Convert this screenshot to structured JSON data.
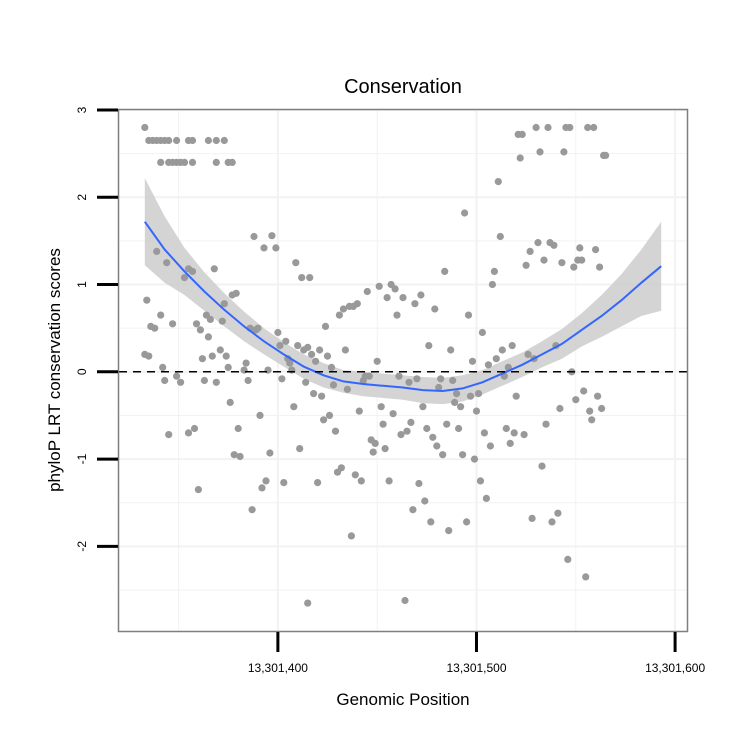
{
  "chart_data": {
    "type": "scatter",
    "title": "Conservation",
    "xlabel": "Genomic Position",
    "ylabel": "phyloP LRT conservation scores",
    "xlim": [
      13301320,
      13301606
    ],
    "ylim": [
      -2.97,
      3.0
    ],
    "xticks": [
      13301400,
      13301500,
      13301600
    ],
    "xtick_labels": [
      "13,301,400",
      "13,301,500",
      "13,301,600"
    ],
    "yticks": [
      -2,
      -1,
      0,
      1,
      2,
      3
    ],
    "ytick_labels": [
      "-2",
      "-1",
      "0",
      "1",
      "2",
      "3"
    ],
    "grid": true,
    "reference_line": {
      "y": 0,
      "style": "dashed"
    },
    "colors": {
      "points": "#999999",
      "smooth": "#3366ff",
      "band": "#cccccc",
      "frame": "#7f7f7f",
      "grid": "#f2f2f2"
    },
    "smooth": {
      "x": [
        13301333,
        13301343,
        13301353,
        13301363,
        13301373,
        13301383,
        13301393,
        13301403,
        13301413,
        13301423,
        13301433,
        13301443,
        13301453,
        13301463,
        13301473,
        13301483,
        13301493,
        13301503,
        13301513,
        13301523,
        13301533,
        13301543,
        13301553,
        13301563,
        13301573,
        13301583,
        13301593
      ],
      "y": [
        1.72,
        1.4,
        1.15,
        0.92,
        0.71,
        0.52,
        0.35,
        0.2,
        0.06,
        -0.04,
        -0.11,
        -0.14,
        -0.16,
        -0.18,
        -0.21,
        -0.22,
        -0.19,
        -0.12,
        -0.02,
        0.08,
        0.2,
        0.32,
        0.48,
        0.64,
        0.82,
        1.02,
        1.21
      ],
      "upper": [
        2.22,
        1.78,
        1.42,
        1.14,
        0.9,
        0.69,
        0.5,
        0.34,
        0.2,
        0.1,
        0.02,
        0.0,
        -0.02,
        -0.04,
        -0.06,
        -0.07,
        -0.04,
        0.02,
        0.12,
        0.22,
        0.35,
        0.49,
        0.67,
        0.88,
        1.12,
        1.4,
        1.72
      ],
      "lower": [
        1.22,
        1.02,
        0.88,
        0.7,
        0.52,
        0.35,
        0.2,
        0.06,
        -0.08,
        -0.18,
        -0.24,
        -0.28,
        -0.3,
        -0.32,
        -0.36,
        -0.37,
        -0.34,
        -0.26,
        -0.16,
        -0.06,
        0.05,
        0.15,
        0.29,
        0.4,
        0.52,
        0.64,
        0.7
      ]
    },
    "points": [
      {
        "x": 13301333,
        "y": 2.8
      },
      {
        "x": 13301333,
        "y": 0.2
      },
      {
        "x": 13301335,
        "y": 2.65
      },
      {
        "x": 13301337,
        "y": 2.65
      },
      {
        "x": 13301339,
        "y": 2.65
      },
      {
        "x": 13301341,
        "y": 2.65
      },
      {
        "x": 13301343,
        "y": 2.65
      },
      {
        "x": 13301341,
        "y": 2.4
      },
      {
        "x": 13301345,
        "y": 2.4
      },
      {
        "x": 13301347,
        "y": 2.4
      },
      {
        "x": 13301349,
        "y": 2.4
      },
      {
        "x": 13301351,
        "y": 2.4
      },
      {
        "x": 13301353,
        "y": 2.4
      },
      {
        "x": 13301345,
        "y": 2.65
      },
      {
        "x": 13301349,
        "y": 2.65
      },
      {
        "x": 13301355,
        "y": 2.65
      },
      {
        "x": 13301357,
        "y": 2.65
      },
      {
        "x": 13301365,
        "y": 2.65
      },
      {
        "x": 13301369,
        "y": 2.65
      },
      {
        "x": 13301373,
        "y": 2.65
      },
      {
        "x": 13301357,
        "y": 2.4
      },
      {
        "x": 13301369,
        "y": 2.4
      },
      {
        "x": 13301375,
        "y": 2.4
      },
      {
        "x": 13301377,
        "y": 2.4
      },
      {
        "x": 13301334,
        "y": 0.82
      },
      {
        "x": 13301335,
        "y": 0.18
      },
      {
        "x": 13301336,
        "y": 0.52
      },
      {
        "x": 13301338,
        "y": 0.5
      },
      {
        "x": 13301339,
        "y": 1.38
      },
      {
        "x": 13301341,
        "y": 0.65
      },
      {
        "x": 13301342,
        "y": 0.05
      },
      {
        "x": 13301343,
        "y": -0.1
      },
      {
        "x": 13301344,
        "y": 1.25
      },
      {
        "x": 13301345,
        "y": -0.72
      },
      {
        "x": 13301347,
        "y": 0.55
      },
      {
        "x": 13301349,
        "y": -0.05
      },
      {
        "x": 13301351,
        "y": -0.12
      },
      {
        "x": 13301353,
        "y": 1.08
      },
      {
        "x": 13301355,
        "y": 1.18
      },
      {
        "x": 13301355,
        "y": -0.7
      },
      {
        "x": 13301357,
        "y": 1.15
      },
      {
        "x": 13301358,
        "y": -0.65
      },
      {
        "x": 13301359,
        "y": 0.55
      },
      {
        "x": 13301360,
        "y": -1.35
      },
      {
        "x": 13301361,
        "y": 0.48
      },
      {
        "x": 13301362,
        "y": 0.15
      },
      {
        "x": 13301363,
        "y": -0.1
      },
      {
        "x": 13301364,
        "y": 0.65
      },
      {
        "x": 13301365,
        "y": 0.4
      },
      {
        "x": 13301366,
        "y": 0.6
      },
      {
        "x": 13301367,
        "y": 0.18
      },
      {
        "x": 13301368,
        "y": 1.18
      },
      {
        "x": 13301369,
        "y": -0.12
      },
      {
        "x": 13301371,
        "y": 0.25
      },
      {
        "x": 13301372,
        "y": 0.58
      },
      {
        "x": 13301373,
        "y": 0.78
      },
      {
        "x": 13301374,
        "y": 0.18
      },
      {
        "x": 13301375,
        "y": 0.05
      },
      {
        "x": 13301376,
        "y": -0.35
      },
      {
        "x": 13301377,
        "y": 0.88
      },
      {
        "x": 13301378,
        "y": -0.95
      },
      {
        "x": 13301379,
        "y": 0.9
      },
      {
        "x": 13301380,
        "y": -0.65
      },
      {
        "x": 13301381,
        "y": -0.97
      },
      {
        "x": 13301383,
        "y": 0.02
      },
      {
        "x": 13301384,
        "y": 0.1
      },
      {
        "x": 13301385,
        "y": -0.1
      },
      {
        "x": 13301386,
        "y": 0.5
      },
      {
        "x": 13301387,
        "y": -1.58
      },
      {
        "x": 13301388,
        "y": 1.55
      },
      {
        "x": 13301389,
        "y": 0.48
      },
      {
        "x": 13301390,
        "y": 0.5
      },
      {
        "x": 13301391,
        "y": -0.5
      },
      {
        "x": 13301392,
        "y": -1.33
      },
      {
        "x": 13301393,
        "y": 1.42
      },
      {
        "x": 13301394,
        "y": -1.25
      },
      {
        "x": 13301395,
        "y": 0.02
      },
      {
        "x": 13301396,
        "y": -0.93
      },
      {
        "x": 13301397,
        "y": 1.56
      },
      {
        "x": 13301399,
        "y": 1.42
      },
      {
        "x": 13301400,
        "y": 0.45
      },
      {
        "x": 13301401,
        "y": 0.3
      },
      {
        "x": 13301402,
        "y": -0.08
      },
      {
        "x": 13301403,
        "y": -1.27
      },
      {
        "x": 13301404,
        "y": 0.35
      },
      {
        "x": 13301405,
        "y": 0.15
      },
      {
        "x": 13301406,
        "y": 0.1
      },
      {
        "x": 13301407,
        "y": 0.02
      },
      {
        "x": 13301408,
        "y": -0.4
      },
      {
        "x": 13301409,
        "y": 1.25
      },
      {
        "x": 13301410,
        "y": 0.3
      },
      {
        "x": 13301411,
        "y": -0.88
      },
      {
        "x": 13301412,
        "y": 1.08
      },
      {
        "x": 13301413,
        "y": 0.25
      },
      {
        "x": 13301414,
        "y": -0.12
      },
      {
        "x": 13301415,
        "y": -2.65
      },
      {
        "x": 13301415,
        "y": 0.28
      },
      {
        "x": 13301416,
        "y": 1.08
      },
      {
        "x": 13301417,
        "y": 0.2
      },
      {
        "x": 13301418,
        "y": -0.25
      },
      {
        "x": 13301419,
        "y": 0.12
      },
      {
        "x": 13301420,
        "y": -1.27
      },
      {
        "x": 13301421,
        "y": 0.25
      },
      {
        "x": 13301422,
        "y": -0.28
      },
      {
        "x": 13301423,
        "y": -0.55
      },
      {
        "x": 13301424,
        "y": 0.52
      },
      {
        "x": 13301425,
        "y": 0.18
      },
      {
        "x": 13301426,
        "y": -0.5
      },
      {
        "x": 13301427,
        "y": 0.05
      },
      {
        "x": 13301428,
        "y": -0.15
      },
      {
        "x": 13301429,
        "y": -0.68
      },
      {
        "x": 13301430,
        "y": -1.15
      },
      {
        "x": 13301431,
        "y": 0.65
      },
      {
        "x": 13301432,
        "y": -1.1
      },
      {
        "x": 13301433,
        "y": 0.72
      },
      {
        "x": 13301434,
        "y": 0.25
      },
      {
        "x": 13301435,
        "y": -0.2
      },
      {
        "x": 13301436,
        "y": 0.75
      },
      {
        "x": 13301437,
        "y": -1.88
      },
      {
        "x": 13301438,
        "y": 0.75
      },
      {
        "x": 13301439,
        "y": -1.18
      },
      {
        "x": 13301440,
        "y": 0.78
      },
      {
        "x": 13301441,
        "y": -0.45
      },
      {
        "x": 13301442,
        "y": -1.25
      },
      {
        "x": 13301443,
        "y": -0.1
      },
      {
        "x": 13301444,
        "y": -0.05
      },
      {
        "x": 13301445,
        "y": 0.92
      },
      {
        "x": 13301446,
        "y": -0.05
      },
      {
        "x": 13301447,
        "y": -0.78
      },
      {
        "x": 13301448,
        "y": -0.92
      },
      {
        "x": 13301449,
        "y": -0.82
      },
      {
        "x": 13301450,
        "y": 0.12
      },
      {
        "x": 13301451,
        "y": 0.98
      },
      {
        "x": 13301452,
        "y": -0.4
      },
      {
        "x": 13301453,
        "y": -0.6
      },
      {
        "x": 13301454,
        "y": -0.88
      },
      {
        "x": 13301455,
        "y": 0.85
      },
      {
        "x": 13301456,
        "y": -1.25
      },
      {
        "x": 13301457,
        "y": 1.0
      },
      {
        "x": 13301458,
        "y": -0.48
      },
      {
        "x": 13301459,
        "y": 0.95
      },
      {
        "x": 13301460,
        "y": 0.65
      },
      {
        "x": 13301461,
        "y": -0.05
      },
      {
        "x": 13301462,
        "y": -0.72
      },
      {
        "x": 13301463,
        "y": 0.85
      },
      {
        "x": 13301464,
        "y": -2.62
      },
      {
        "x": 13301465,
        "y": -0.68
      },
      {
        "x": 13301466,
        "y": -0.12
      },
      {
        "x": 13301467,
        "y": -0.58
      },
      {
        "x": 13301468,
        "y": -1.58
      },
      {
        "x": 13301469,
        "y": 0.78
      },
      {
        "x": 13301470,
        "y": -0.08
      },
      {
        "x": 13301471,
        "y": -1.28
      },
      {
        "x": 13301472,
        "y": 0.88
      },
      {
        "x": 13301473,
        "y": -0.4
      },
      {
        "x": 13301474,
        "y": -1.48
      },
      {
        "x": 13301475,
        "y": -0.65
      },
      {
        "x": 13301476,
        "y": 0.3
      },
      {
        "x": 13301477,
        "y": -1.72
      },
      {
        "x": 13301478,
        "y": -0.75
      },
      {
        "x": 13301479,
        "y": 0.72
      },
      {
        "x": 13301480,
        "y": -0.85
      },
      {
        "x": 13301481,
        "y": -0.18
      },
      {
        "x": 13301482,
        "y": -0.08
      },
      {
        "x": 13301483,
        "y": -0.95
      },
      {
        "x": 13301484,
        "y": 1.15
      },
      {
        "x": 13301485,
        "y": -0.6
      },
      {
        "x": 13301486,
        "y": -1.82
      },
      {
        "x": 13301487,
        "y": 0.25
      },
      {
        "x": 13301488,
        "y": -0.1
      },
      {
        "x": 13301489,
        "y": -0.35
      },
      {
        "x": 13301490,
        "y": -0.25
      },
      {
        "x": 13301491,
        "y": -0.65
      },
      {
        "x": 13301492,
        "y": -0.4
      },
      {
        "x": 13301493,
        "y": -0.95
      },
      {
        "x": 13301494,
        "y": 1.82
      },
      {
        "x": 13301495,
        "y": -1.72
      },
      {
        "x": 13301496,
        "y": 0.65
      },
      {
        "x": 13301497,
        "y": -0.28
      },
      {
        "x": 13301498,
        "y": 0.12
      },
      {
        "x": 13301499,
        "y": -1.0
      },
      {
        "x": 13301500,
        "y": -0.45
      },
      {
        "x": 13301501,
        "y": -0.25
      },
      {
        "x": 13301502,
        "y": -1.25
      },
      {
        "x": 13301503,
        "y": 0.45
      },
      {
        "x": 13301504,
        "y": -0.7
      },
      {
        "x": 13301505,
        "y": -1.45
      },
      {
        "x": 13301506,
        "y": 0.08
      },
      {
        "x": 13301507,
        "y": -0.85
      },
      {
        "x": 13301508,
        "y": 1.0
      },
      {
        "x": 13301509,
        "y": 1.15
      },
      {
        "x": 13301510,
        "y": 0.15
      },
      {
        "x": 13301511,
        "y": 2.18
      },
      {
        "x": 13301512,
        "y": 1.55
      },
      {
        "x": 13301513,
        "y": 0.25
      },
      {
        "x": 13301514,
        "y": -0.05
      },
      {
        "x": 13301515,
        "y": -0.65
      },
      {
        "x": 13301516,
        "y": 0.05
      },
      {
        "x": 13301517,
        "y": -0.82
      },
      {
        "x": 13301518,
        "y": 0.3
      },
      {
        "x": 13301519,
        "y": -0.7
      },
      {
        "x": 13301520,
        "y": -0.28
      },
      {
        "x": 13301521,
        "y": 2.72
      },
      {
        "x": 13301522,
        "y": 2.45
      },
      {
        "x": 13301523,
        "y": 2.72
      },
      {
        "x": 13301524,
        "y": -0.72
      },
      {
        "x": 13301525,
        "y": 1.22
      },
      {
        "x": 13301526,
        "y": 0.2
      },
      {
        "x": 13301527,
        "y": 1.38
      },
      {
        "x": 13301528,
        "y": -1.68
      },
      {
        "x": 13301529,
        "y": 0.15
      },
      {
        "x": 13301530,
        "y": 2.8
      },
      {
        "x": 13301531,
        "y": 1.48
      },
      {
        "x": 13301532,
        "y": 2.52
      },
      {
        "x": 13301533,
        "y": -1.08
      },
      {
        "x": 13301534,
        "y": 1.28
      },
      {
        "x": 13301535,
        "y": -0.6
      },
      {
        "x": 13301536,
        "y": 2.8
      },
      {
        "x": 13301537,
        "y": 1.48
      },
      {
        "x": 13301538,
        "y": -1.72
      },
      {
        "x": 13301539,
        "y": 1.45
      },
      {
        "x": 13301540,
        "y": 0.3
      },
      {
        "x": 13301541,
        "y": -1.62
      },
      {
        "x": 13301542,
        "y": -0.42
      },
      {
        "x": 13301543,
        "y": 1.25
      },
      {
        "x": 13301544,
        "y": 2.52
      },
      {
        "x": 13301545,
        "y": 2.8
      },
      {
        "x": 13301546,
        "y": -2.15
      },
      {
        "x": 13301547,
        "y": 2.8
      },
      {
        "x": 13301548,
        "y": 0.0
      },
      {
        "x": 13301549,
        "y": 1.2
      },
      {
        "x": 13301550,
        "y": -0.32
      },
      {
        "x": 13301551,
        "y": 1.28
      },
      {
        "x": 13301552,
        "y": 1.42
      },
      {
        "x": 13301553,
        "y": 1.28
      },
      {
        "x": 13301554,
        "y": -0.22
      },
      {
        "x": 13301555,
        "y": -2.35
      },
      {
        "x": 13301556,
        "y": 2.8
      },
      {
        "x": 13301557,
        "y": -0.45
      },
      {
        "x": 13301558,
        "y": -0.55
      },
      {
        "x": 13301559,
        "y": 2.8
      },
      {
        "x": 13301560,
        "y": 1.4
      },
      {
        "x": 13301561,
        "y": -0.28
      },
      {
        "x": 13301562,
        "y": 1.2
      },
      {
        "x": 13301563,
        "y": -0.42
      },
      {
        "x": 13301564,
        "y": 2.48
      },
      {
        "x": 13301565,
        "y": 2.48
      }
    ]
  }
}
